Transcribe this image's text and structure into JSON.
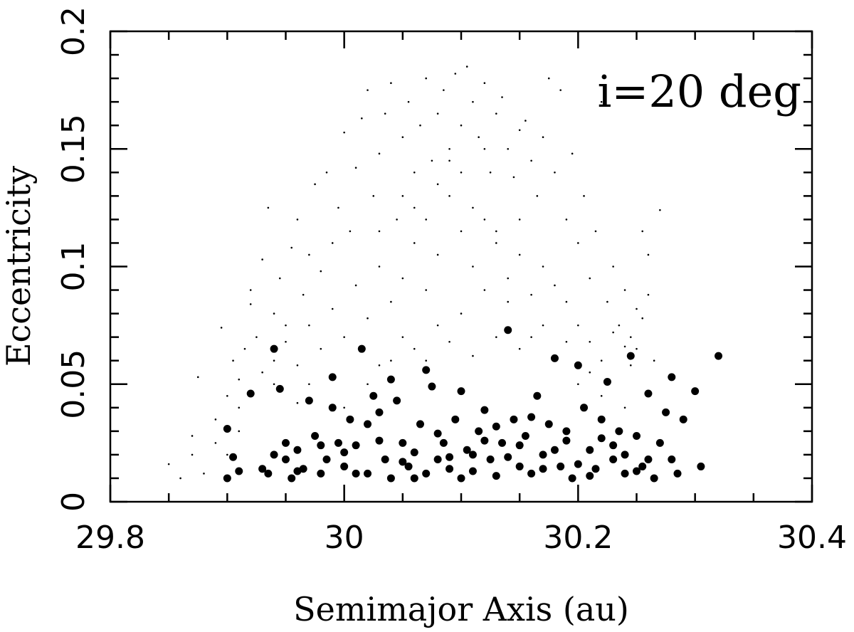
{
  "chart_data": {
    "type": "scatter",
    "title": "",
    "xlabel": "Semimajor Axis (au)",
    "ylabel": "Eccentricity",
    "xlim": [
      29.8,
      30.4
    ],
    "ylim": [
      0,
      0.2
    ],
    "x_ticks": [
      29.8,
      30.0,
      30.2,
      30.4
    ],
    "x_tick_labels": [
      "29.8",
      "30",
      "30.2",
      "30.4"
    ],
    "y_ticks": [
      0,
      0.05,
      0.1,
      0.15,
      0.2
    ],
    "y_tick_labels": [
      "0",
      "0.05",
      "0.1",
      "0.15",
      "0.2"
    ],
    "annotation": "i=20 deg",
    "grid": false,
    "legend": "none",
    "series": [
      {
        "style": "small-dot",
        "color": "#000000",
        "points": [
          [
            29.85,
            0.016
          ],
          [
            29.86,
            0.01
          ],
          [
            29.87,
            0.02
          ],
          [
            29.87,
            0.028
          ],
          [
            29.875,
            0.053
          ],
          [
            29.88,
            0.012
          ],
          [
            29.89,
            0.035
          ],
          [
            29.895,
            0.074
          ],
          [
            29.9,
            0.045
          ],
          [
            29.905,
            0.06
          ],
          [
            29.91,
            0.04
          ],
          [
            29.91,
            0.052
          ],
          [
            29.915,
            0.065
          ],
          [
            29.92,
            0.084
          ],
          [
            29.92,
            0.09
          ],
          [
            29.925,
            0.07
          ],
          [
            29.93,
            0.103
          ],
          [
            29.935,
            0.125
          ],
          [
            29.94,
            0.06
          ],
          [
            29.94,
            0.08
          ],
          [
            29.945,
            0.095
          ],
          [
            29.95,
            0.075
          ],
          [
            29.955,
            0.108
          ],
          [
            29.96,
            0.12
          ],
          [
            29.965,
            0.088
          ],
          [
            29.97,
            0.105
          ],
          [
            29.975,
            0.135
          ],
          [
            29.98,
            0.098
          ],
          [
            29.985,
            0.14
          ],
          [
            29.99,
            0.11
          ],
          [
            29.995,
            0.125
          ],
          [
            30.0,
            0.157
          ],
          [
            30.005,
            0.115
          ],
          [
            30.01,
            0.142
          ],
          [
            30.015,
            0.163
          ],
          [
            30.02,
            0.175
          ],
          [
            30.025,
            0.13
          ],
          [
            30.03,
            0.148
          ],
          [
            30.035,
            0.165
          ],
          [
            30.04,
            0.178
          ],
          [
            30.045,
            0.12
          ],
          [
            30.05,
            0.155
          ],
          [
            30.055,
            0.17
          ],
          [
            30.06,
            0.14
          ],
          [
            30.065,
            0.16
          ],
          [
            30.07,
            0.18
          ],
          [
            30.075,
            0.145
          ],
          [
            30.08,
            0.165
          ],
          [
            30.085,
            0.175
          ],
          [
            30.09,
            0.15
          ],
          [
            30.095,
            0.182
          ],
          [
            30.1,
            0.16
          ],
          [
            30.105,
            0.185
          ],
          [
            30.11,
            0.17
          ],
          [
            30.115,
            0.155
          ],
          [
            30.12,
            0.178
          ],
          [
            30.125,
            0.14
          ],
          [
            30.13,
            0.165
          ],
          [
            30.135,
            0.172
          ],
          [
            30.14,
            0.15
          ],
          [
            30.145,
            0.138
          ],
          [
            30.15,
            0.158
          ],
          [
            30.155,
            0.162
          ],
          [
            30.16,
            0.145
          ],
          [
            30.165,
            0.13
          ],
          [
            30.17,
            0.155
          ],
          [
            30.175,
            0.18
          ],
          [
            30.18,
            0.14
          ],
          [
            30.185,
            0.175
          ],
          [
            30.19,
            0.12
          ],
          [
            30.195,
            0.148
          ],
          [
            30.2,
            0.11
          ],
          [
            30.205,
            0.13
          ],
          [
            30.21,
            0.095
          ],
          [
            30.215,
            0.115
          ],
          [
            30.22,
            0.17
          ],
          [
            30.225,
            0.085
          ],
          [
            30.23,
            0.1
          ],
          [
            30.235,
            0.075
          ],
          [
            30.24,
            0.09
          ],
          [
            30.245,
            0.07
          ],
          [
            30.25,
            0.082
          ],
          [
            30.255,
            0.115
          ],
          [
            30.26,
            0.105
          ],
          [
            30.265,
            0.06
          ],
          [
            30.27,
            0.124
          ],
          [
            30.26,
            0.088
          ],
          [
            30.255,
            0.078
          ],
          [
            30.25,
            0.065
          ],
          [
            30.245,
            0.058
          ],
          [
            30.24,
            0.066
          ],
          [
            30.23,
            0.072
          ],
          [
            30.22,
            0.06
          ],
          [
            30.21,
            0.068
          ],
          [
            30.2,
            0.075
          ],
          [
            30.19,
            0.085
          ],
          [
            30.18,
            0.092
          ],
          [
            30.17,
            0.1
          ],
          [
            30.16,
            0.088
          ],
          [
            30.15,
            0.105
          ],
          [
            30.14,
            0.095
          ],
          [
            30.13,
            0.11
          ],
          [
            30.12,
            0.12
          ],
          [
            30.11,
            0.1
          ],
          [
            30.1,
            0.115
          ],
          [
            30.09,
            0.13
          ],
          [
            30.08,
            0.105
          ],
          [
            30.07,
            0.09
          ],
          [
            30.06,
            0.11
          ],
          [
            30.05,
            0.095
          ],
          [
            30.04,
            0.085
          ],
          [
            30.03,
            0.1
          ],
          [
            30.02,
            0.078
          ],
          [
            30.01,
            0.092
          ],
          [
            30.0,
            0.07
          ],
          [
            29.99,
            0.082
          ],
          [
            29.98,
            0.065
          ],
          [
            29.97,
            0.075
          ],
          [
            29.96,
            0.058
          ],
          [
            29.95,
            0.068
          ],
          [
            29.94,
            0.05
          ],
          [
            29.93,
            0.055
          ],
          [
            29.92,
            0.045
          ],
          [
            29.91,
            0.03
          ],
          [
            29.9,
            0.02
          ],
          [
            29.89,
            0.025
          ],
          [
            30.0,
            0.04
          ],
          [
            30.02,
            0.05
          ],
          [
            30.04,
            0.06
          ],
          [
            30.06,
            0.065
          ],
          [
            30.08,
            0.075
          ],
          [
            30.1,
            0.08
          ],
          [
            30.12,
            0.09
          ],
          [
            30.14,
            0.085
          ],
          [
            30.16,
            0.07
          ],
          [
            30.18,
            0.06
          ],
          [
            30.2,
            0.05
          ],
          [
            30.22,
            0.045
          ],
          [
            30.24,
            0.04
          ],
          [
            30.08,
            0.135
          ],
          [
            30.09,
            0.145
          ],
          [
            30.1,
            0.14
          ],
          [
            30.11,
            0.125
          ],
          [
            30.12,
            0.15
          ],
          [
            30.07,
            0.12
          ],
          [
            30.06,
            0.125
          ],
          [
            30.13,
            0.115
          ],
          [
            30.15,
            0.12
          ],
          [
            30.05,
            0.13
          ],
          [
            30.03,
            0.115
          ],
          [
            29.97,
            0.05
          ],
          [
            29.96,
            0.042
          ],
          [
            30.03,
            0.058
          ],
          [
            30.05,
            0.07
          ],
          [
            30.07,
            0.06
          ],
          [
            30.09,
            0.068
          ],
          [
            30.11,
            0.062
          ],
          [
            30.13,
            0.07
          ],
          [
            30.15,
            0.065
          ],
          [
            30.17,
            0.075
          ],
          [
            30.19,
            0.068
          ],
          [
            30.21,
            0.055
          ]
        ]
      },
      {
        "style": "large-dot",
        "color": "#000000",
        "points": [
          [
            29.9,
            0.01
          ],
          [
            29.9,
            0.031
          ],
          [
            29.905,
            0.019
          ],
          [
            29.91,
            0.013
          ],
          [
            29.92,
            0.046
          ],
          [
            29.93,
            0.014
          ],
          [
            29.935,
            0.012
          ],
          [
            29.94,
            0.065
          ],
          [
            29.94,
            0.02
          ],
          [
            29.945,
            0.048
          ],
          [
            29.95,
            0.025
          ],
          [
            29.95,
            0.018
          ],
          [
            29.955,
            0.01
          ],
          [
            29.96,
            0.022
          ],
          [
            29.965,
            0.014
          ],
          [
            29.97,
            0.043
          ],
          [
            29.975,
            0.028
          ],
          [
            29.98,
            0.012
          ],
          [
            29.985,
            0.018
          ],
          [
            29.99,
            0.053
          ],
          [
            29.99,
            0.04
          ],
          [
            29.995,
            0.025
          ],
          [
            30.0,
            0.015
          ],
          [
            30.005,
            0.035
          ],
          [
            30.01,
            0.024
          ],
          [
            30.015,
            0.065
          ],
          [
            30.02,
            0.012
          ],
          [
            30.025,
            0.045
          ],
          [
            30.03,
            0.038
          ],
          [
            30.035,
            0.018
          ],
          [
            30.04,
            0.052
          ],
          [
            30.04,
            0.01
          ],
          [
            30.045,
            0.043
          ],
          [
            30.05,
            0.025
          ],
          [
            30.055,
            0.015
          ],
          [
            30.06,
            0.01
          ],
          [
            30.065,
            0.033
          ],
          [
            30.07,
            0.056
          ],
          [
            30.075,
            0.049
          ],
          [
            30.08,
            0.018
          ],
          [
            30.085,
            0.025
          ],
          [
            30.09,
            0.014
          ],
          [
            30.095,
            0.035
          ],
          [
            30.1,
            0.01
          ],
          [
            30.1,
            0.047
          ],
          [
            30.105,
            0.022
          ],
          [
            30.11,
            0.013
          ],
          [
            30.115,
            0.03
          ],
          [
            30.12,
            0.039
          ],
          [
            30.125,
            0.018
          ],
          [
            30.13,
            0.011
          ],
          [
            30.135,
            0.025
          ],
          [
            30.14,
            0.073
          ],
          [
            30.145,
            0.035
          ],
          [
            30.15,
            0.015
          ],
          [
            30.155,
            0.028
          ],
          [
            30.16,
            0.012
          ],
          [
            30.165,
            0.045
          ],
          [
            30.17,
            0.02
          ],
          [
            30.175,
            0.033
          ],
          [
            30.18,
            0.061
          ],
          [
            30.185,
            0.015
          ],
          [
            30.19,
            0.026
          ],
          [
            30.195,
            0.01
          ],
          [
            30.2,
            0.058
          ],
          [
            30.205,
            0.04
          ],
          [
            30.21,
            0.022
          ],
          [
            30.215,
            0.014
          ],
          [
            30.22,
            0.035
          ],
          [
            30.225,
            0.051
          ],
          [
            30.23,
            0.018
          ],
          [
            30.235,
            0.03
          ],
          [
            30.24,
            0.012
          ],
          [
            30.245,
            0.062
          ],
          [
            30.25,
            0.028
          ],
          [
            30.255,
            0.015
          ],
          [
            30.26,
            0.046
          ],
          [
            30.265,
            0.01
          ],
          [
            30.27,
            0.025
          ],
          [
            30.275,
            0.038
          ],
          [
            30.28,
            0.053
          ],
          [
            30.285,
            0.012
          ],
          [
            30.29,
            0.035
          ],
          [
            30.3,
            0.047
          ],
          [
            30.305,
            0.015
          ],
          [
            30.32,
            0.062
          ],
          [
            29.96,
            0.013
          ],
          [
            30.0,
            0.021
          ],
          [
            30.02,
            0.033
          ],
          [
            30.06,
            0.021
          ],
          [
            30.08,
            0.029
          ],
          [
            30.12,
            0.026
          ],
          [
            30.14,
            0.019
          ],
          [
            30.16,
            0.036
          ],
          [
            30.18,
            0.022
          ],
          [
            30.2,
            0.016
          ],
          [
            30.22,
            0.027
          ],
          [
            30.24,
            0.02
          ],
          [
            30.26,
            0.018
          ],
          [
            30.03,
            0.026
          ],
          [
            30.05,
            0.017
          ],
          [
            30.07,
            0.012
          ],
          [
            30.09,
            0.019
          ],
          [
            30.11,
            0.02
          ],
          [
            30.13,
            0.032
          ],
          [
            30.15,
            0.024
          ],
          [
            30.17,
            0.014
          ],
          [
            30.19,
            0.03
          ],
          [
            30.21,
            0.011
          ],
          [
            30.23,
            0.024
          ],
          [
            30.25,
            0.013
          ],
          [
            30.28,
            0.018
          ],
          [
            29.98,
            0.024
          ],
          [
            30.01,
            0.012
          ]
        ]
      }
    ]
  }
}
